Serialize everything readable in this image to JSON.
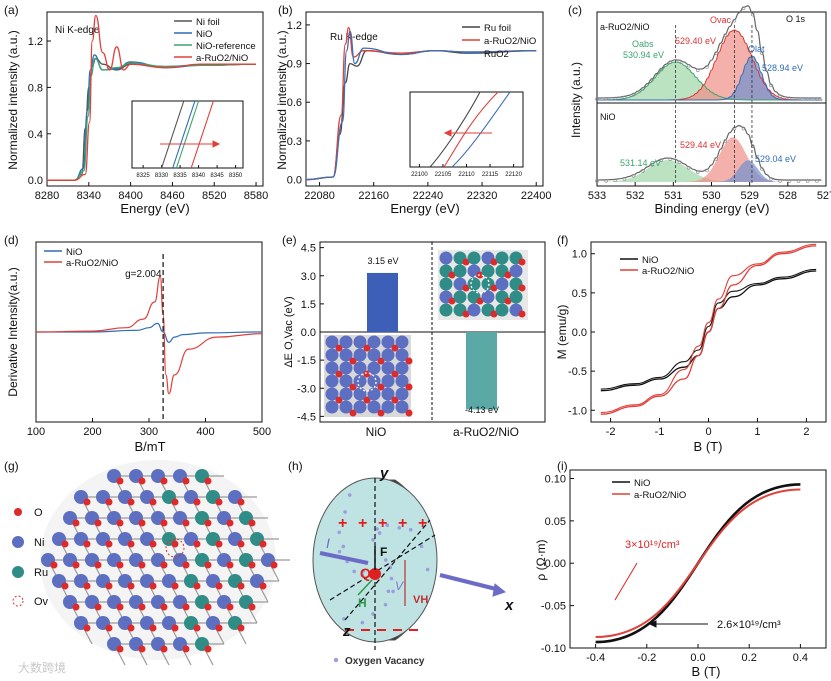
{
  "panels": {
    "a": {
      "label": "(a)",
      "title": "Ni K-edge",
      "xlabel": "Energy (eV)",
      "ylabel": "Normalized intensity (a.u.)",
      "xticks": [
        "8280",
        "8340",
        "8400",
        "8460",
        "8520",
        "8580"
      ],
      "yticks": [
        "0.0",
        "0.4",
        "0.8",
        "1.2"
      ],
      "legend": [
        "Ni foil",
        "NiO",
        "NiO-reference",
        "a-RuO2/NiO"
      ],
      "inset_xticks": [
        "8325",
        "8330",
        "8335",
        "8340",
        "8345",
        "8350"
      ]
    },
    "b": {
      "label": "(b)",
      "title": "Ru K-edge",
      "xlabel": "Energy (eV)",
      "ylabel": "Normalized intensity (a.u.)",
      "xticks": [
        "22080",
        "22160",
        "22240",
        "22320",
        "22400"
      ],
      "yticks": [
        "0.0",
        "0.3",
        "0.6",
        "0.9",
        "1.2"
      ],
      "legend": [
        "Ru foil",
        "a-RuO2/NiO",
        "RuO2"
      ],
      "inset_xticks": [
        "22100",
        "22105",
        "22110",
        "22115",
        "22120"
      ]
    },
    "c": {
      "label": "(c)",
      "title": "O 1s",
      "sample_top": "a-RuO2/NiO",
      "sample_bottom": "NiO",
      "xlabel": "Binding energy (eV)",
      "ylabel": "Intensity (a.u.)",
      "xticks": [
        "533",
        "532",
        "531",
        "530",
        "529",
        "528",
        "527"
      ],
      "peaks_top": [
        "530.94 eV",
        "529.40 eV",
        "528.94 eV"
      ],
      "peak_names": [
        "Oabs",
        "Ovac",
        "Olat"
      ],
      "peaks_bottom": [
        "531.14 eV",
        "529.44 eV",
        "529.04 eV"
      ]
    },
    "d": {
      "label": "(d)",
      "xlabel": "B/mT",
      "ylabel": "Derivative Intensity(a.u.)",
      "xticks": [
        "100",
        "200",
        "300",
        "400",
        "500"
      ],
      "legend": [
        "NiO",
        "a-RuO2/NiO"
      ],
      "annotation": "g=2.004"
    },
    "e": {
      "label": "(e)",
      "ylabel": "ΔE O,Vac (eV)",
      "yticks": [
        "4.5",
        "3.0",
        "1.5",
        "0.0",
        "-1.5",
        "-3.0",
        "-4.5"
      ],
      "categories": [
        "NiO",
        "a-RuO2/NiO"
      ],
      "bar_labels": [
        "3.15 eV",
        "-4.13 eV"
      ]
    },
    "f": {
      "label": "(f)",
      "xlabel": "B (T)",
      "ylabel": "M (emu/g)",
      "xticks": [
        "-2",
        "-1",
        "0",
        "1",
        "2"
      ],
      "yticks": [
        "1.0",
        "0.5",
        "0.0",
        "-0.5",
        "-1.0"
      ],
      "legend": [
        "NiO",
        "a-RuO2/NiO"
      ]
    },
    "g": {
      "label": "(g)",
      "legend": [
        "O",
        "Ni",
        "Ru",
        "Ov"
      ]
    },
    "h": {
      "label": "(h)",
      "axes": [
        "y",
        "x",
        "z"
      ],
      "labels": [
        "I",
        "Q",
        "F",
        "H",
        "V",
        "VH"
      ],
      "caption": "Oxygen Vacancy"
    },
    "i": {
      "label": "(i)",
      "xlabel": "B (T)",
      "ylabel": "ρ (Ω·m)",
      "xticks": [
        "-0.4",
        "-0.2",
        "0.0",
        "0.2",
        "0.4"
      ],
      "yticks": [
        "0.10",
        "0.05",
        "0.00",
        "-0.05",
        "-0.10"
      ],
      "legend": [
        "NiO",
        "a-RuO2/NiO"
      ],
      "annotation_red": "3×10¹⁹/cm³",
      "annotation_black": "2.6×10¹⁹/cm³"
    }
  },
  "watermark": "大数跨境",
  "colors": {
    "ni_foil": "#555555",
    "nio": "#2f6db5",
    "nio_ref": "#3aa56e",
    "ruo2nio": "#e0403a",
    "ru_foil": "#444444",
    "ruo2": "#3f6fb0",
    "bar_nio": "#3d5fb8",
    "bar_ru": "#5aa9a6",
    "fill_vac": "#f08f86",
    "fill_lat": "#6f92cf",
    "fill_abs": "#9ed6a6",
    "ni_atom": "#5c6fc0",
    "o_atom": "#dd2a2a",
    "ru_atom": "#2f8c87"
  },
  "chart_data": [
    {
      "panel": "a",
      "type": "line",
      "title": "Ni K-edge",
      "xlabel": "Energy (eV)",
      "ylabel": "Normalized intensity (a.u.)",
      "xlim": [
        8280,
        8590
      ],
      "ylim": [
        -0.05,
        1.45
      ],
      "series": [
        {
          "name": "Ni foil",
          "x": [
            8280,
            8320,
            8330,
            8335,
            8340,
            8345,
            8350,
            8360,
            8380,
            8400,
            8450,
            8500,
            8580
          ],
          "y": [
            0,
            0,
            0.05,
            0.45,
            0.8,
            0.98,
            1.05,
            1.0,
            0.95,
            1.0,
            0.98,
            0.99,
            1.0
          ]
        },
        {
          "name": "NiO",
          "x": [
            8280,
            8320,
            8332,
            8338,
            8342,
            8348,
            8360,
            8380,
            8400,
            8450,
            8500,
            8580
          ],
          "y": [
            0,
            0,
            0.1,
            0.6,
            0.95,
            1.08,
            0.95,
            0.96,
            1.02,
            0.97,
            0.99,
            1.0
          ]
        },
        {
          "name": "NiO-reference",
          "x": [
            8280,
            8320,
            8333,
            8339,
            8343,
            8349,
            8360,
            8380,
            8400,
            8450,
            8500,
            8580
          ],
          "y": [
            0,
            0,
            0.08,
            0.55,
            0.9,
            1.05,
            0.95,
            0.97,
            1.01,
            0.98,
            0.99,
            1.0
          ]
        },
        {
          "name": "a-RuO2/NiO",
          "x": [
            8280,
            8320,
            8335,
            8341,
            8345,
            8350,
            8360,
            8370,
            8380,
            8390,
            8400,
            8450,
            8500,
            8580
          ],
          "y": [
            0,
            0,
            0.05,
            0.5,
            1.2,
            1.42,
            1.1,
            0.95,
            1.15,
            0.95,
            1.0,
            0.97,
            1.0,
            1.0
          ]
        }
      ]
    },
    {
      "panel": "b",
      "type": "line",
      "title": "Ru K-edge",
      "xlabel": "Energy (eV)",
      "ylabel": "Normalized intensity (a.u.)",
      "xlim": [
        22060,
        22410
      ],
      "ylim": [
        -0.05,
        1.3
      ],
      "series": [
        {
          "name": "Ru foil",
          "x": [
            22060,
            22100,
            22110,
            22118,
            22125,
            22135,
            22150,
            22200,
            22250,
            22300,
            22400
          ],
          "y": [
            0,
            0.02,
            0.35,
            0.75,
            0.9,
            0.88,
            1.0,
            0.97,
            1.0,
            0.98,
            1.0
          ]
        },
        {
          "name": "a-RuO2/NiO",
          "x": [
            22060,
            22100,
            22112,
            22118,
            22123,
            22130,
            22145,
            22200,
            22250,
            22300,
            22400
          ],
          "y": [
            0,
            0.02,
            0.5,
            1.05,
            1.18,
            0.95,
            1.0,
            0.98,
            1.0,
            0.99,
            1.0
          ]
        },
        {
          "name": "RuO2",
          "x": [
            22060,
            22100,
            22114,
            22120,
            22125,
            22132,
            22145,
            22200,
            22250,
            22300,
            22400
          ],
          "y": [
            0,
            0.02,
            0.45,
            1.0,
            1.15,
            0.9,
            1.02,
            0.97,
            1.0,
            0.99,
            1.0
          ]
        }
      ]
    },
    {
      "panel": "c",
      "type": "line",
      "title": "O 1s",
      "xlabel": "Binding energy (eV)",
      "ylabel": "Intensity (a.u.)",
      "xlim": [
        533,
        527
      ],
      "peaks": {
        "a-RuO2/NiO": [
          530.94,
          529.4,
          528.94
        ],
        "NiO": [
          531.14,
          529.44,
          529.04
        ]
      }
    },
    {
      "panel": "d",
      "type": "line",
      "xlabel": "B/mT",
      "ylabel": "Derivative Intensity(a.u.)",
      "xlim": [
        100,
        500
      ],
      "series": [
        {
          "name": "NiO",
          "x": [
            100,
            200,
            280,
            300,
            315,
            325,
            335,
            345,
            360,
            400,
            500
          ],
          "y": [
            0,
            0,
            0.02,
            0.05,
            0.1,
            0,
            -0.12,
            -0.06,
            -0.03,
            -0.01,
            0
          ]
        },
        {
          "name": "a-RuO2/NiO",
          "x": [
            100,
            200,
            260,
            290,
            310,
            320,
            325,
            330,
            335,
            345,
            370,
            420,
            500
          ],
          "y": [
            0,
            0.01,
            0.05,
            0.15,
            0.35,
            0.65,
            0.2,
            -0.5,
            -0.72,
            -0.5,
            -0.2,
            -0.06,
            -0.02
          ]
        }
      ],
      "annotation": "g=2.004"
    },
    {
      "panel": "e",
      "type": "bar",
      "ylabel": "ΔE O,Vac (eV)",
      "categories": [
        "NiO",
        "a-RuO2/NiO"
      ],
      "values": [
        3.15,
        -4.13
      ],
      "ylim": [
        -4.8,
        4.8
      ]
    },
    {
      "panel": "f",
      "type": "line",
      "xlabel": "B (T)",
      "ylabel": "M (emu/g)",
      "xlim": [
        -2.4,
        2.4
      ],
      "ylim": [
        -1.15,
        1.15
      ],
      "series": [
        {
          "name": "NiO",
          "x": [
            -2.2,
            -1.5,
            -1,
            -0.5,
            -0.2,
            0,
            0.2,
            0.5,
            1,
            1.5,
            2.2
          ],
          "y": [
            -0.75,
            -0.68,
            -0.6,
            -0.45,
            -0.3,
            0,
            0.3,
            0.45,
            0.6,
            0.68,
            0.78
          ]
        },
        {
          "name": "a-RuO2/NiO",
          "x": [
            -2.2,
            -1.5,
            -1,
            -0.5,
            -0.2,
            0,
            0.2,
            0.5,
            1,
            1.5,
            2.2
          ],
          "y": [
            -1.05,
            -0.95,
            -0.82,
            -0.6,
            -0.3,
            0,
            0.3,
            0.6,
            0.85,
            1.0,
            1.1
          ]
        }
      ]
    },
    {
      "panel": "i",
      "type": "line",
      "xlabel": "B (T)",
      "ylabel": "ρ (Ω·m)",
      "xlim": [
        -0.5,
        0.5
      ],
      "ylim": [
        -0.1,
        0.11
      ],
      "series": [
        {
          "name": "NiO",
          "x": [
            -0.4,
            0.4
          ],
          "y": [
            -0.093,
            0.093
          ]
        },
        {
          "name": "a-RuO2/NiO",
          "x": [
            -0.4,
            0.4
          ],
          "y": [
            -0.087,
            0.087
          ]
        }
      ]
    }
  ]
}
